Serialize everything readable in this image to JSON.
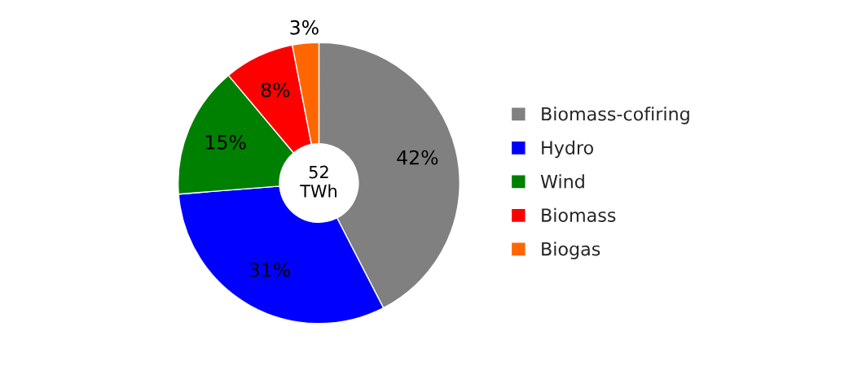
{
  "chart_data": {
    "type": "donut",
    "categories": [
      "Biomass-cofiring",
      "Hydro",
      "Wind",
      "Biomass",
      "Biogas"
    ],
    "values": [
      42,
      31,
      15,
      8,
      3
    ],
    "colors": [
      "#808080",
      "#0000ff",
      "#008000",
      "#ff0000",
      "#ff6600"
    ],
    "value_labels": [
      "42%",
      "31%",
      "15%",
      "8%",
      "3%"
    ],
    "legend": "right",
    "annotations": [
      "52\nTWh"
    ]
  }
}
